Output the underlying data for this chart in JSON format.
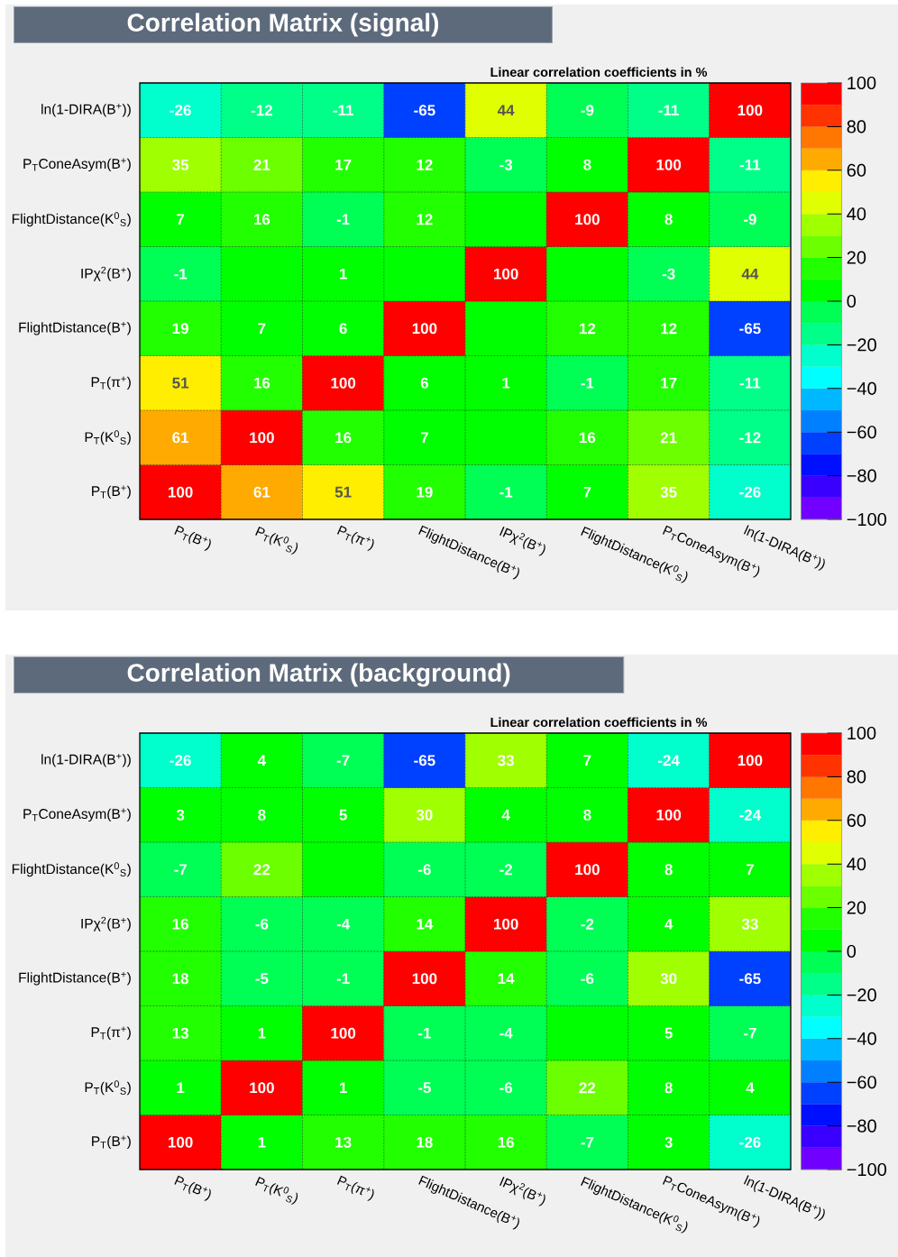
{
  "chart_data": [
    {
      "type": "heatmap",
      "title": "Correlation Matrix (signal)",
      "subtitle": "Linear correlation coefficients in %",
      "categories": [
        "P$_{T}$(B$^{+}$)",
        "P$_{T}$(K$^{0}$$_{S}$)",
        "P$_{T}$(π$^{+}$)",
        "FlightDistance(B$^{+}$)",
        "IPχ$^{2}$(B$^{+}$)",
        "FlightDistance(K$^{0}$$_{S}$)",
        "P$_{T}$ConeAsym(B$^{+}$)",
        "ln(1-DIRA(B$^{+}$))"
      ],
      "y_categories": [
        "ln(1-DIRA(B$^{+}$))",
        "P$_{T}$ConeAsym(B$^{+}$)",
        "FlightDistance(K$^{0}$$_{S}$)",
        "IPχ$^{2}$(B$^{+}$)",
        "FlightDistance(B$^{+}$)",
        "P$_{T}$(π$^{+}$)",
        "P$_{T}$(K$^{0}$$_{S}$)",
        "P$_{T}$(B$^{+}$)"
      ],
      "cells": [
        [
          -26,
          -12,
          -11,
          -65,
          44,
          -9,
          -11,
          100
        ],
        [
          35,
          21,
          17,
          12,
          -3,
          8,
          100,
          -11
        ],
        [
          7,
          16,
          -1,
          12,
          0,
          100,
          8,
          -9
        ],
        [
          -1,
          0,
          1,
          0,
          100,
          0,
          -3,
          44
        ],
        [
          19,
          7,
          6,
          100,
          0,
          12,
          12,
          -65
        ],
        [
          51,
          16,
          100,
          6,
          1,
          -1,
          17,
          -11
        ],
        [
          61,
          100,
          16,
          7,
          0,
          16,
          21,
          -12
        ],
        [
          100,
          61,
          51,
          19,
          -1,
          7,
          35,
          -26
        ]
      ],
      "cell_labels": [
        [
          "-26",
          "-12",
          "-11",
          "-65",
          "44",
          "-9",
          "-11",
          "100"
        ],
        [
          "35",
          "21",
          "17",
          "12",
          "-3",
          "8",
          "100",
          "-11"
        ],
        [
          "7",
          "16",
          "-1",
          "12",
          null,
          "100",
          "8",
          "-9"
        ],
        [
          "-1",
          null,
          "1",
          null,
          "100",
          null,
          "-3",
          "44"
        ],
        [
          "19",
          "7",
          "6",
          "100",
          null,
          "12",
          "12",
          "-65"
        ],
        [
          "51",
          "16",
          "100",
          "6",
          "1",
          "-1",
          "17",
          "-11"
        ],
        [
          "61",
          "100",
          "16",
          "7",
          null,
          "16",
          "21",
          "-12"
        ],
        [
          "100",
          "61",
          "51",
          "19",
          "-1",
          "7",
          "35",
          "-26"
        ]
      ],
      "clim": [
        -100,
        100
      ],
      "cticks": [
        {
          "value": -100,
          "label": "−100"
        },
        {
          "value": -80,
          "label": "−80"
        },
        {
          "value": -60,
          "label": "−60"
        },
        {
          "value": -40,
          "label": "−40"
        },
        {
          "value": -20,
          "label": "−20"
        },
        0,
        20,
        40,
        60,
        80,
        100
      ],
      "grid": true
    },
    {
      "type": "heatmap",
      "title": "Correlation Matrix (background)",
      "subtitle": "Linear correlation coefficients in %",
      "categories": [
        "P$_{T}$(B$^{+}$)",
        "P$_{T}$(K$^{0}$$_{S}$)",
        "P$_{T}$(π$^{+}$)",
        "FlightDistance(B$^{+}$)",
        "IPχ$^{2}$(B$^{+}$)",
        "FlightDistance(K$^{0}$$_{S}$)",
        "P$_{T}$ConeAsym(B$^{+}$)",
        "ln(1-DIRA(B$^{+}$))"
      ],
      "y_categories": [
        "ln(1-DIRA(B$^{+}$))",
        "P$_{T}$ConeAsym(B$^{+}$)",
        "FlightDistance(K$^{0}$$_{S}$)",
        "IPχ$^{2}$(B$^{+}$)",
        "FlightDistance(B$^{+}$)",
        "P$_{T}$(π$^{+}$)",
        "P$_{T}$(K$^{0}$$_{S}$)",
        "P$_{T}$(B$^{+}$)"
      ],
      "cells": [
        [
          -26,
          4,
          -7,
          -65,
          33,
          7,
          -24,
          100
        ],
        [
          3,
          8,
          5,
          30,
          4,
          8,
          100,
          -24
        ],
        [
          -7,
          22,
          0,
          -6,
          -2,
          100,
          8,
          7
        ],
        [
          16,
          -6,
          -4,
          14,
          100,
          -2,
          4,
          33
        ],
        [
          18,
          -5,
          -1,
          100,
          14,
          -6,
          30,
          -65
        ],
        [
          13,
          1,
          100,
          -1,
          -4,
          0,
          5,
          -7
        ],
        [
          1,
          100,
          1,
          -5,
          -6,
          22,
          8,
          4
        ],
        [
          100,
          1,
          13,
          18,
          16,
          -7,
          3,
          -26
        ]
      ],
      "cell_labels": [
        [
          "-26",
          "4",
          "-7",
          "-65",
          "33",
          "7",
          "-24",
          "100"
        ],
        [
          "3",
          "8",
          "5",
          "30",
          "4",
          "8",
          "100",
          "-24"
        ],
        [
          "-7",
          "22",
          null,
          "-6",
          "-2",
          "100",
          "8",
          "7"
        ],
        [
          "16",
          "-6",
          "-4",
          "14",
          "100",
          "-2",
          "4",
          "33"
        ],
        [
          "18",
          "-5",
          "-1",
          "100",
          "14",
          "-6",
          "30",
          "-65"
        ],
        [
          "13",
          "1",
          "100",
          "-1",
          "-4",
          null,
          "5",
          "-7"
        ],
        [
          "1",
          "100",
          "1",
          "-5",
          "-6",
          "22",
          "8",
          "4"
        ],
        [
          "100",
          "1",
          "13",
          "18",
          "16",
          "-7",
          "3",
          "-26"
        ]
      ],
      "clim": [
        -100,
        100
      ],
      "cticks": [
        {
          "value": -100,
          "label": "−100"
        },
        {
          "value": -80,
          "label": "−80"
        },
        {
          "value": -60,
          "label": "−60"
        },
        {
          "value": -40,
          "label": "−40"
        },
        {
          "value": -20,
          "label": "−20"
        },
        0,
        20,
        40,
        60,
        80,
        100
      ],
      "grid": true
    }
  ]
}
